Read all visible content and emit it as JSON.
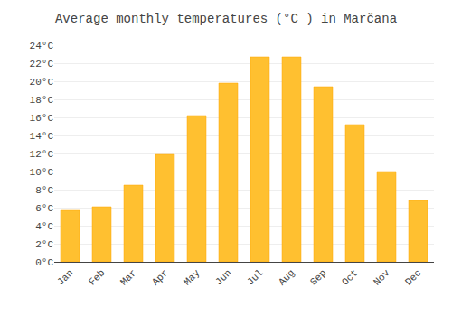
{
  "chart_data": {
    "type": "bar",
    "title": "Average monthly temperatures (°C ) in Marčana",
    "categories": [
      "Jan",
      "Feb",
      "Mar",
      "Apr",
      "May",
      "Jun",
      "Jul",
      "Aug",
      "Sep",
      "Oct",
      "Nov",
      "Dec"
    ],
    "values": [
      5.7,
      6.1,
      8.5,
      11.9,
      16.2,
      19.8,
      22.7,
      22.7,
      19.4,
      15.2,
      10.0,
      6.8
    ],
    "color": "#FFC030",
    "ylim": [
      0,
      24
    ],
    "yticks": [
      {
        "value": 0,
        "label": "0°C"
      },
      {
        "value": 2,
        "label": "2°C"
      },
      {
        "value": 4,
        "label": "4°C"
      },
      {
        "value": 6,
        "label": "6°C"
      },
      {
        "value": 8,
        "label": "8°C"
      },
      {
        "value": 10,
        "label": "10°C"
      },
      {
        "value": 12,
        "label": "12°C"
      },
      {
        "value": 14,
        "label": "14°C"
      },
      {
        "value": 16,
        "label": "16°C"
      },
      {
        "value": 18,
        "label": "18°C"
      },
      {
        "value": 20,
        "label": "20°C"
      },
      {
        "value": 22,
        "label": "22°C"
      },
      {
        "value": 24,
        "label": "24°C"
      }
    ],
    "grid": true
  }
}
